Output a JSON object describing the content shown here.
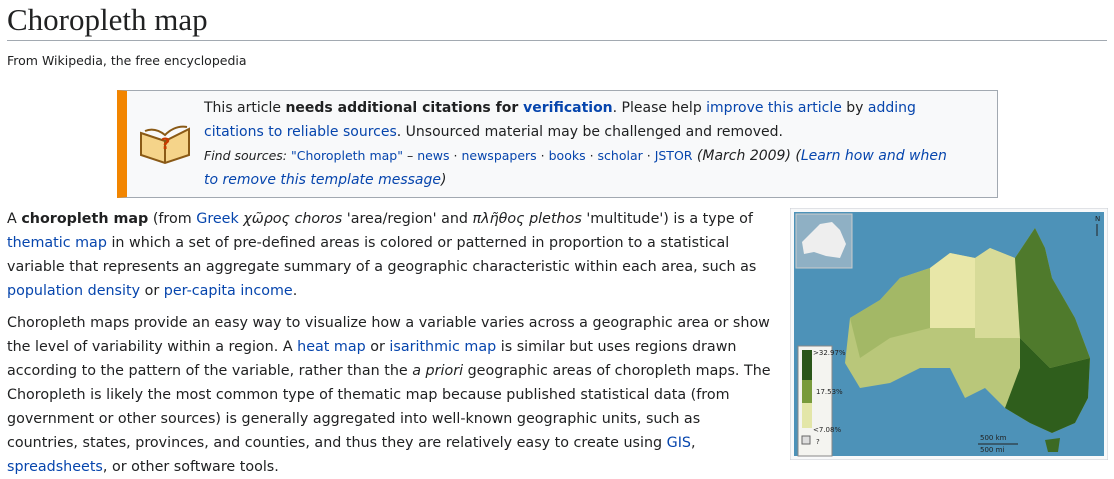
{
  "header": {
    "title": "Choropleth map",
    "tagline": "From Wikipedia, the free encyclopedia"
  },
  "notice": {
    "text": [
      "This article ",
      "needs additional citations for ",
      "verification",
      ". Please help ",
      "improve this article",
      " by ",
      "adding citations to reliable sources",
      ". Unsourced material may be challenged and removed."
    ],
    "find_sources": [
      "Find sources:",
      " ",
      "\"Choropleth map\"",
      " – ",
      "news",
      " · ",
      "newspapers",
      " · ",
      "books",
      " · ",
      "scholar",
      " · ",
      "JSTOR",
      " (March 2009) (",
      "Learn how and when to remove this template message",
      ")"
    ]
  },
  "paragraphs": [
    [
      "A ",
      "choropleth map",
      " (from ",
      "Greek",
      " ",
      "χῶρος choros",
      " 'area/region' and ",
      "πλῆθος plethos",
      " 'multitude') is a type of ",
      "thematic map",
      " in which a set of pre-defined areas is colored or patterned in proportion to a statistical variable that represents an aggregate summary of a geographic characteristic within each area, such as ",
      "population density",
      " or ",
      "per-capita income",
      "."
    ],
    [
      "Choropleth maps provide an easy way to visualize how a variable varies across a geographic area or show the level of variability within a region. A ",
      "heat map",
      " or ",
      "isarithmic map",
      " is similar but uses regions drawn according to the pattern of the variable, rather than the ",
      "a priori",
      " geographic areas of choropleth maps. The Choropleth is likely the most common type of thematic map because published statistical data (from government or other sources) is generally aggregated into well-known geographic units, such as countries, states, provinces, and counties, and thus they are relatively easy to create using ",
      "GIS",
      ", ",
      "spreadsheets",
      ", or other software tools."
    ]
  ],
  "figure": {
    "legend": [
      ">32.97%",
      "17.53%",
      "<7.08%",
      "?"
    ],
    "scale": [
      "500 km",
      "500 mi"
    ],
    "north": "N"
  }
}
